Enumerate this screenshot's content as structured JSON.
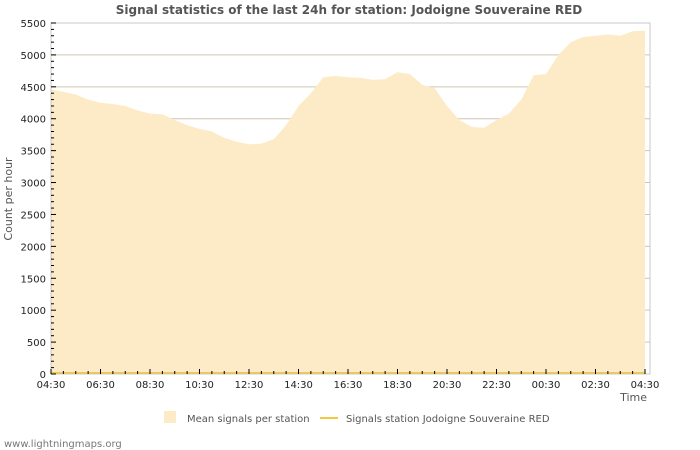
{
  "chart_data": {
    "type": "area",
    "title": "Signal statistics of the last 24h for station: Jodoigne Souveraine RED",
    "xlabel": "Time",
    "ylabel": "Count per hour",
    "ylim": [
      0,
      5500
    ],
    "yticks": [
      0,
      500,
      1000,
      1500,
      2000,
      2500,
      3000,
      3500,
      4000,
      4500,
      5000,
      5500
    ],
    "xticks": [
      "04:30",
      "06:30",
      "08:30",
      "10:30",
      "12:30",
      "14:30",
      "16:30",
      "18:30",
      "20:30",
      "22:30",
      "00:30",
      "02:30",
      "04:30"
    ],
    "grid": true,
    "legend_position": "bottom",
    "x": [
      "04:30",
      "05:00",
      "05:30",
      "06:00",
      "06:30",
      "07:00",
      "07:30",
      "08:00",
      "08:30",
      "09:00",
      "09:30",
      "10:00",
      "10:30",
      "11:00",
      "11:30",
      "12:00",
      "12:30",
      "13:00",
      "13:30",
      "14:00",
      "14:30",
      "15:00",
      "15:30",
      "16:00",
      "16:30",
      "17:00",
      "17:30",
      "18:00",
      "18:30",
      "19:00",
      "19:30",
      "20:00",
      "20:30",
      "21:00",
      "21:30",
      "22:00",
      "22:30",
      "23:00",
      "23:30",
      "00:00",
      "00:30",
      "01:00",
      "01:30",
      "02:00",
      "02:30",
      "03:00",
      "03:30",
      "04:00",
      "04:30"
    ],
    "series": [
      {
        "name": "Mean signals per station",
        "type": "area",
        "color": "#fdebc8",
        "values": [
          4460,
          4420,
          4380,
          4300,
          4250,
          4230,
          4200,
          4130,
          4080,
          4070,
          3980,
          3900,
          3840,
          3800,
          3700,
          3640,
          3600,
          3610,
          3680,
          3900,
          4200,
          4400,
          4650,
          4670,
          4650,
          4640,
          4610,
          4620,
          4730,
          4700,
          4530,
          4480,
          4200,
          3980,
          3870,
          3860,
          3980,
          4080,
          4300,
          4680,
          4700,
          5000,
          5200,
          5280,
          5300,
          5320,
          5300,
          5370,
          5380
        ]
      },
      {
        "name": "Signals station Jodoigne Souveraine RED",
        "type": "line",
        "color": "#f4c842",
        "values": [
          0,
          0,
          0,
          0,
          0,
          0,
          0,
          0,
          0,
          0,
          0,
          0,
          0,
          0,
          0,
          0,
          0,
          0,
          0,
          0,
          0,
          0,
          0,
          0,
          0,
          0,
          0,
          0,
          0,
          0,
          0,
          0,
          0,
          0,
          0,
          0,
          0,
          0,
          0,
          0,
          0,
          0,
          0,
          0,
          0,
          0,
          0,
          0,
          0
        ]
      }
    ]
  },
  "legend": {
    "items": [
      {
        "label": "Mean signals per station",
        "color": "#fdebc8"
      },
      {
        "label": "Signals station Jodoigne Souveraine RED",
        "color": "#f4c842"
      }
    ]
  },
  "footer": {
    "text": "www.lightningmaps.org"
  }
}
